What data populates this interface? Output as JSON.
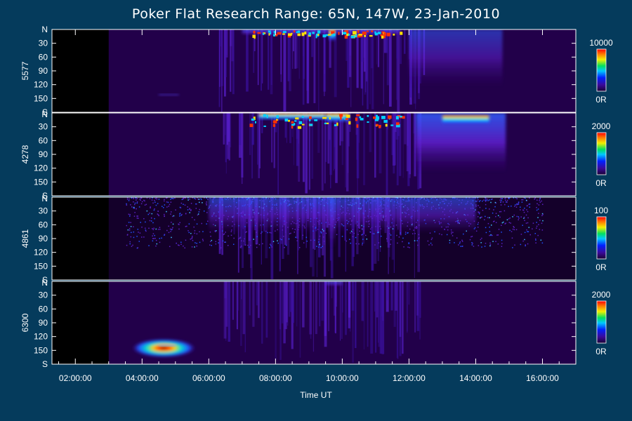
{
  "chart_data": {
    "type": "heatmap",
    "title": "Poker Flat Research Range: 65N, 147W, 23-Jan-2010",
    "xlabel": "Time UT",
    "x_ticks": [
      "02:00:00",
      "04:00:00",
      "06:00:00",
      "08:00:00",
      "10:00:00",
      "12:00:00",
      "14:00:00",
      "16:00:00"
    ],
    "x_range_hours": [
      1.3,
      17.0
    ],
    "data_start_hour": 3.0,
    "y_ticks": [
      "N",
      "30",
      "60",
      "90",
      "120",
      "150",
      "S"
    ],
    "y_range_deg": [
      0,
      180
    ],
    "colorbar_min_label": "0R",
    "panels": [
      {
        "wavelength": "5577",
        "colorbar_max": "10000",
        "features": [
          {
            "time": [
              7.0,
              11.7
            ],
            "elev": [
              0,
              12
            ],
            "intensity": 0.8,
            "note": "discrete arcs near north horizon"
          },
          {
            "time": [
              9.6,
              9.8
            ],
            "elev": [
              0,
              25
            ],
            "intensity": 0.95
          },
          {
            "time": [
              12.0,
              14.8
            ],
            "elev": [
              0,
              125
            ],
            "intensity": 0.45
          },
          {
            "time": [
              4.5,
              5.1
            ],
            "elev": [
              140,
              145
            ],
            "intensity": 0.55
          }
        ]
      },
      {
        "wavelength": "4278",
        "colorbar_max": "2000",
        "features": [
          {
            "time": [
              7.5,
              9.5
            ],
            "elev": [
              0,
              15
            ],
            "intensity": 1.0
          },
          {
            "time": [
              9.5,
              10.2
            ],
            "elev": [
              0,
              20
            ],
            "intensity": 1.0
          },
          {
            "time": [
              12.2,
              14.9
            ],
            "elev": [
              0,
              130
            ],
            "intensity": 0.75
          },
          {
            "time": [
              13.0,
              14.4
            ],
            "elev": [
              5,
              25
            ],
            "intensity": 1.0
          }
        ]
      },
      {
        "wavelength": "4861",
        "colorbar_max": "100",
        "features": [
          {
            "time": [
              6.0,
              14.0
            ],
            "elev": [
              0,
              80
            ],
            "intensity": 0.5,
            "note": "diffuse speckled emission"
          },
          {
            "time": [
              9.6,
              9.8
            ],
            "elev": [
              0,
              110
            ],
            "intensity": 0.6
          }
        ]
      },
      {
        "wavelength": "6300",
        "colorbar_max": "2000",
        "features": [
          {
            "time": [
              3.7,
              5.6
            ],
            "elev": [
              125,
              165
            ],
            "intensity": 0.9,
            "note": "bright red-line patch"
          },
          {
            "time": [
              4.5,
              5.0
            ],
            "elev": [
              136,
              142
            ],
            "intensity": 1.0
          },
          {
            "time": [
              9.5,
              10.0
            ],
            "elev": [
              0,
              10
            ],
            "intensity": 0.7
          }
        ]
      }
    ]
  }
}
